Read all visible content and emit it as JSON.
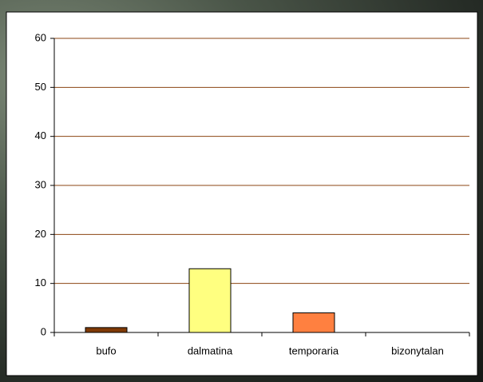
{
  "chart_data": {
    "type": "bar",
    "categories": [
      "bufo",
      "dalmatina",
      "temporaria",
      "bizonytalan"
    ],
    "values": [
      1,
      13,
      4,
      0
    ],
    "colors": [
      "#7f3a06",
      "#ffff80",
      "#ff8040",
      "#c0c0c0"
    ],
    "ylim": [
      0,
      60
    ],
    "yticks": [
      0,
      10,
      20,
      30,
      40,
      50,
      60
    ],
    "grid": true
  }
}
